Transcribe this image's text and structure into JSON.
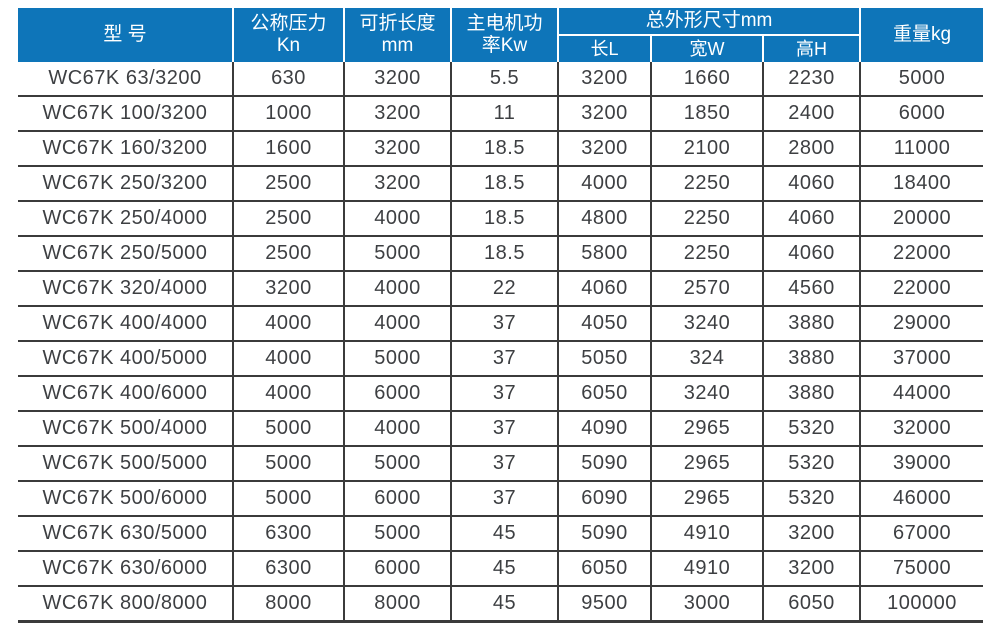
{
  "table": {
    "title_semantic": "WC67K press brake specification table",
    "accent_color": "#0E75B9",
    "headers": {
      "model": "型 号",
      "pressure": "公称压力\nKn",
      "fold_length": "可折长度\nmm",
      "motor_power": "主电机功\n率Kw",
      "dims_group": "总外形尺寸mm",
      "dim_l": "长L",
      "dim_w": "宽W",
      "dim_h": "高H",
      "weight": "重量kg"
    },
    "rows": [
      [
        "WC67K 63/3200",
        "630",
        "3200",
        "5.5",
        "3200",
        "1660",
        "2230",
        "5000"
      ],
      [
        "WC67K 100/3200",
        "1000",
        "3200",
        "11",
        "3200",
        "1850",
        "2400",
        "6000"
      ],
      [
        "WC67K 160/3200",
        "1600",
        "3200",
        "18.5",
        "3200",
        "2100",
        "2800",
        "11000"
      ],
      [
        "WC67K 250/3200",
        "2500",
        "3200",
        "18.5",
        "4000",
        "2250",
        "4060",
        "18400"
      ],
      [
        "WC67K 250/4000",
        "2500",
        "4000",
        "18.5",
        "4800",
        "2250",
        "4060",
        "20000"
      ],
      [
        "WC67K 250/5000",
        "2500",
        "5000",
        "18.5",
        "5800",
        "2250",
        "4060",
        "22000"
      ],
      [
        "WC67K 320/4000",
        "3200",
        "4000",
        "22",
        "4060",
        "2570",
        "4560",
        "22000"
      ],
      [
        "WC67K 400/4000",
        "4000",
        "4000",
        "37",
        "4050",
        "3240",
        "3880",
        "29000"
      ],
      [
        "WC67K 400/5000",
        "4000",
        "5000",
        "37",
        "5050",
        "324",
        "3880",
        "37000"
      ],
      [
        "WC67K 400/6000",
        "4000",
        "6000",
        "37",
        "6050",
        "3240",
        "3880",
        "44000"
      ],
      [
        "WC67K 500/4000",
        "5000",
        "4000",
        "37",
        "4090",
        "2965",
        "5320",
        "32000"
      ],
      [
        "WC67K 500/5000",
        "5000",
        "5000",
        "37",
        "5090",
        "2965",
        "5320",
        "39000"
      ],
      [
        "WC67K 500/6000",
        "5000",
        "6000",
        "37",
        "6090",
        "2965",
        "5320",
        "46000"
      ],
      [
        "WC67K 630/5000",
        "6300",
        "5000",
        "45",
        "5090",
        "4910",
        "3200",
        "67000"
      ],
      [
        "WC67K 630/6000",
        "6300",
        "6000",
        "45",
        "6050",
        "4910",
        "3200",
        "75000"
      ],
      [
        "WC67K 800/8000",
        "8000",
        "8000",
        "45",
        "9500",
        "3000",
        "6050",
        "100000"
      ]
    ]
  }
}
